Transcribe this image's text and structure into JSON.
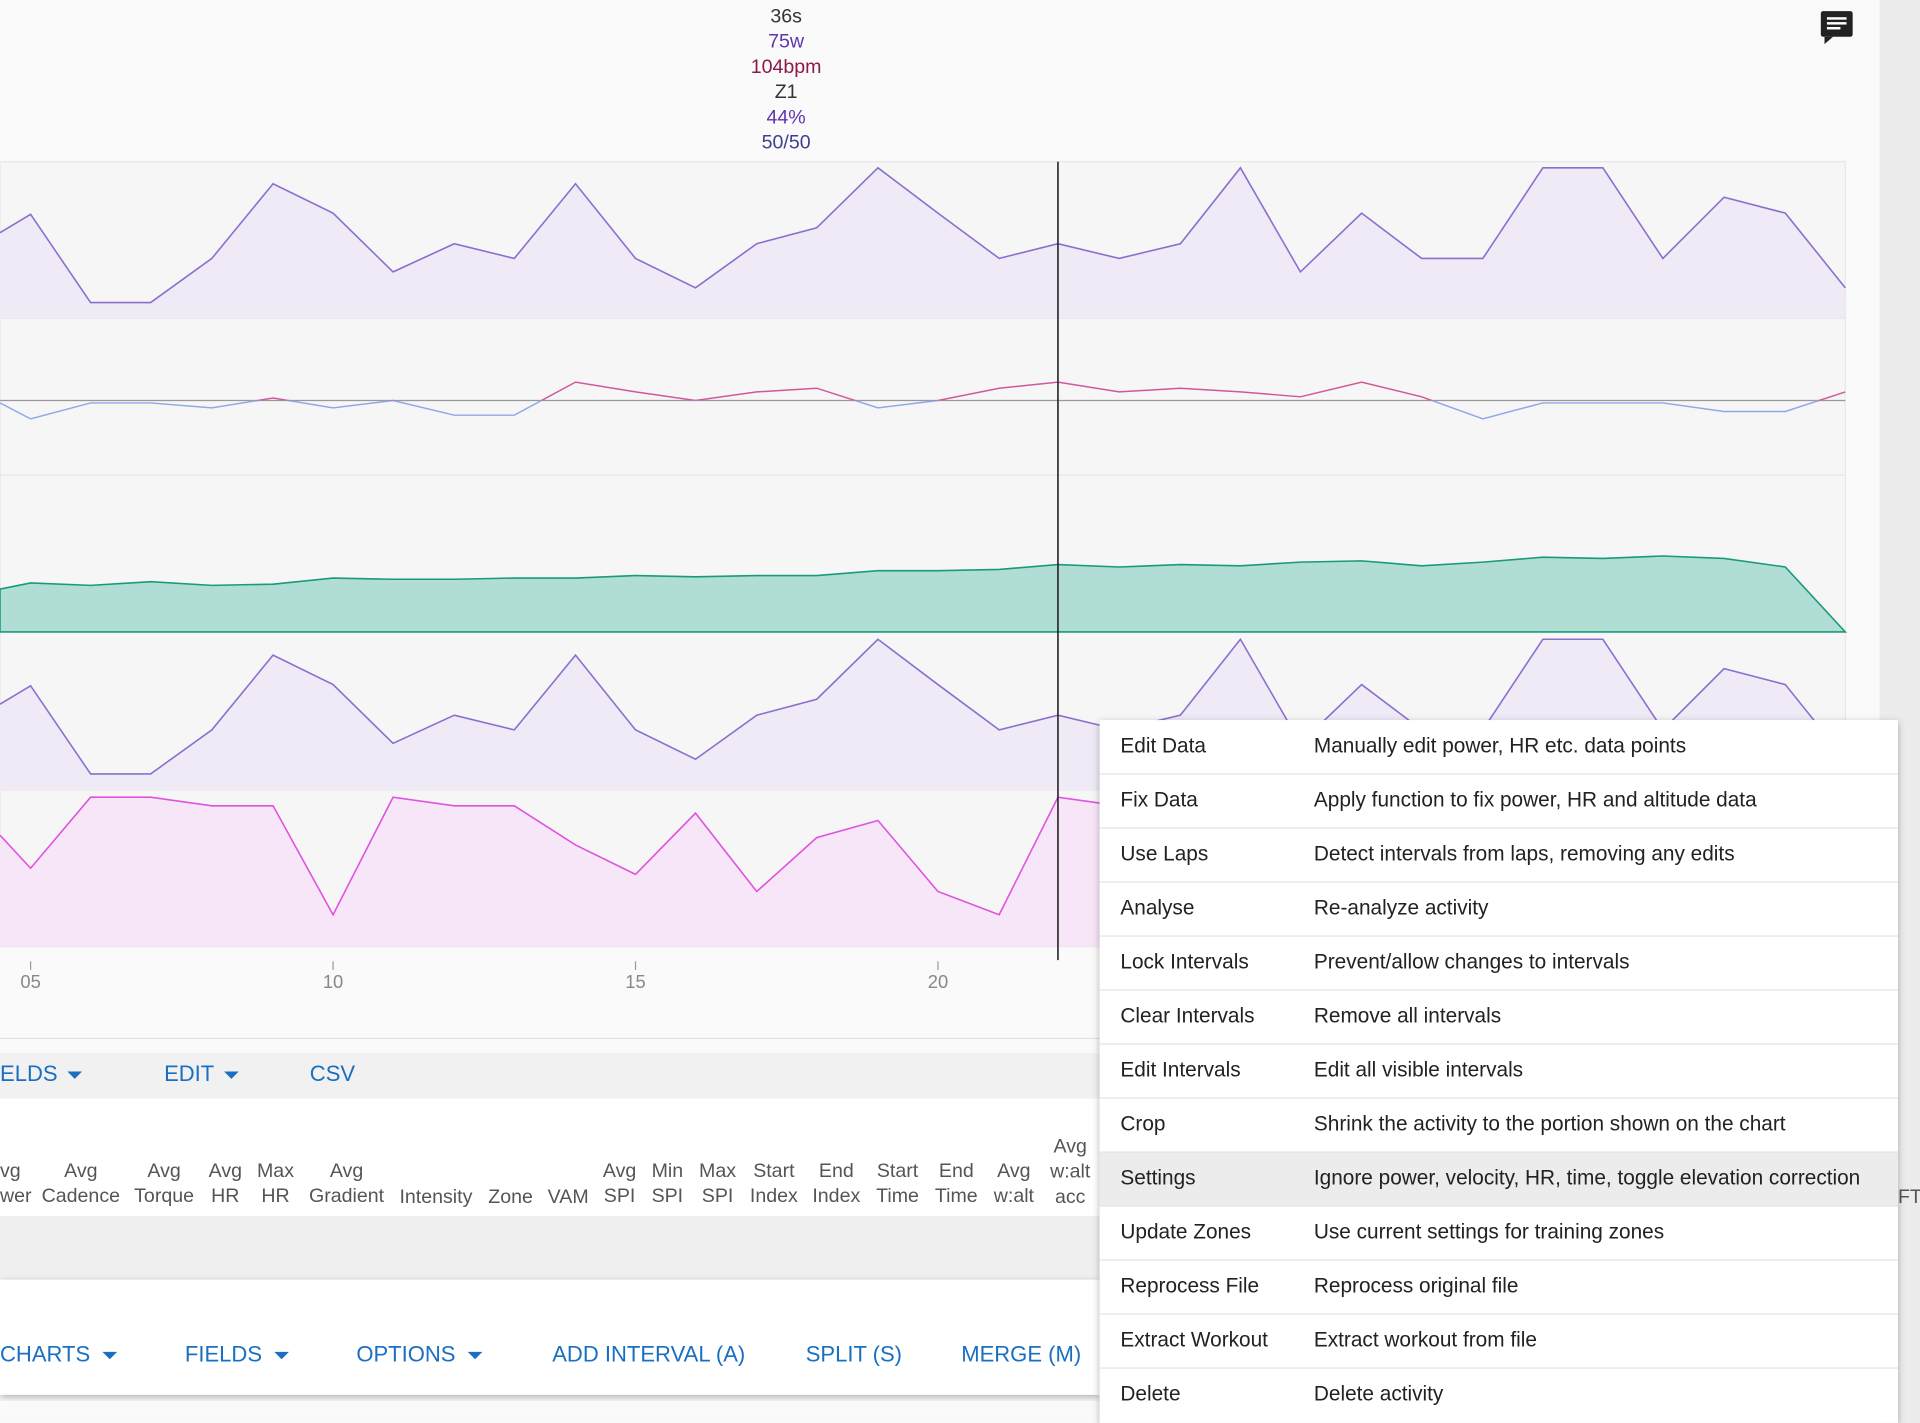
{
  "tooltip": [
    "36s",
    "75w",
    "104bpm",
    "Z1",
    "44%",
    "50/50"
  ],
  "x_ticks": [
    "05",
    "10",
    "15",
    "20"
  ],
  "toolbar": [
    "ELDS",
    "EDIT",
    "CSV"
  ],
  "columns": [
    [
      "vg",
      "wer"
    ],
    [
      "Avg",
      "Cadence"
    ],
    [
      "Avg",
      "Torque"
    ],
    [
      "Avg",
      "HR"
    ],
    [
      "Max",
      "HR"
    ],
    [
      "Avg",
      "Gradient"
    ],
    [
      "Intensity"
    ],
    [
      "Zone"
    ],
    [
      "VAM"
    ],
    [
      "Avg",
      "SPI"
    ],
    [
      "Min",
      "SPI"
    ],
    [
      "Max",
      "SPI"
    ],
    [
      "Start",
      "Index"
    ],
    [
      "End",
      "Index"
    ],
    [
      "Start",
      "Time"
    ],
    [
      "End",
      "Time"
    ],
    [
      "Avg",
      "w:alt"
    ],
    [
      "Avg",
      "w:alt",
      "acc"
    ],
    [
      "FT"
    ]
  ],
  "bottom_toolbar": [
    "CHARTS",
    "FIELDS",
    "OPTIONS",
    "ADD INTERVAL (A)",
    "SPLIT (S)",
    "MERGE (M)"
  ],
  "menu": [
    [
      "Edit Data",
      "Manually edit power, HR etc. data points"
    ],
    [
      "Fix Data",
      "Apply function to fix power, HR and altitude data"
    ],
    [
      "Use Laps",
      "Detect intervals from laps, removing any edits"
    ],
    [
      "Analyse",
      "Re-analyze activity"
    ],
    [
      "Lock Intervals",
      "Prevent/allow changes to intervals"
    ],
    [
      "Clear Intervals",
      "Remove all intervals"
    ],
    [
      "Edit Intervals",
      "Edit all visible intervals"
    ],
    [
      "Crop",
      "Shrink the activity to the portion shown on the chart"
    ],
    [
      "Settings",
      "Ignore power, velocity, HR, time, toggle elevation correction"
    ],
    [
      "Update Zones",
      "Use current settings for training zones"
    ],
    [
      "Reprocess File",
      "Reprocess original file"
    ],
    [
      "Extract Workout",
      "Extract workout from file"
    ],
    [
      "Delete",
      "Delete activity"
    ]
  ]
}
